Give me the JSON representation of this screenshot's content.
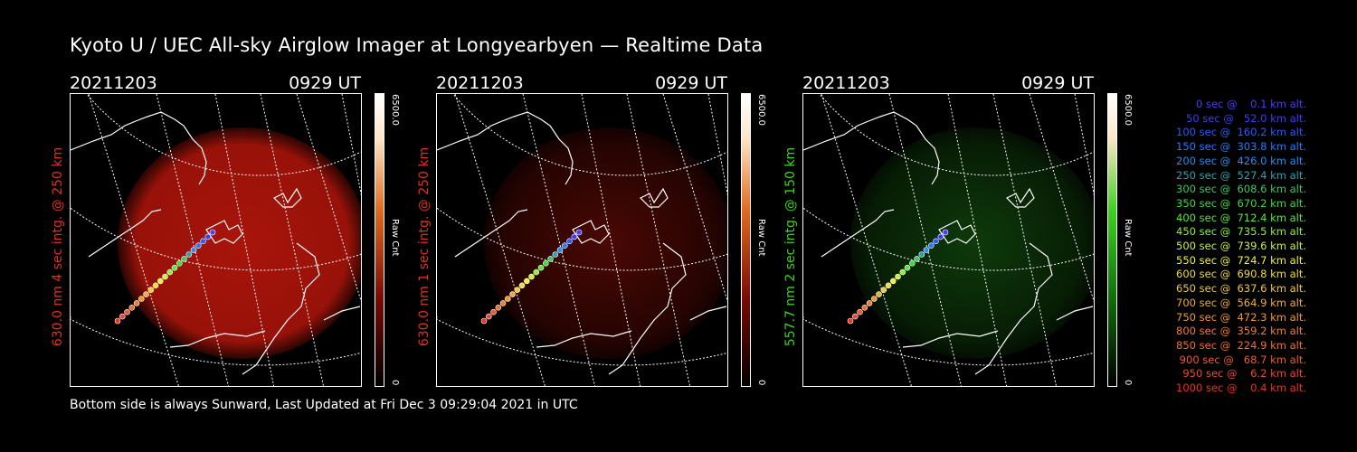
{
  "title": "Kyoto U / UEC All-sky Airglow Imager at Longyearbyen — Realtime Data",
  "panels": [
    {
      "date": "20211203",
      "time": "0929 UT",
      "ylabel": "630.0 nm 4 sec intg. @ 250 km",
      "color": "#e0321e",
      "glow": "#a8140a",
      "glow_level": 0.9,
      "cbar_max": "6500.0",
      "cbar_unit": "Raw Cnt",
      "cbar_zero": "0"
    },
    {
      "date": "20211203",
      "time": "0929 UT",
      "ylabel": "630.0 nm 1 sec intg. @ 250 km",
      "color": "#e0321e",
      "glow": "#4a0804",
      "glow_level": 0.5,
      "cbar_max": "6500.0",
      "cbar_unit": "Raw Cnt",
      "cbar_zero": "0"
    },
    {
      "date": "20211203",
      "time": "0929 UT",
      "ylabel": "557.7 nm 2 sec intg. @ 150 km",
      "color": "#3cd21e",
      "glow": "#0e3a0a",
      "glow_level": 0.5,
      "cbar_max": "6500.0",
      "cbar_unit": "Raw Cnt",
      "cbar_zero": "0"
    }
  ],
  "footer": "Bottom side is always Sunward, Last Updated at Fri Dec  3 09:29:04 2021 in UTC",
  "trajectory_legend": [
    {
      "label": "   0 sec @    0.1 km alt.",
      "color": "#4a3cff"
    },
    {
      "label": "  50 sec @   52.0 km alt.",
      "color": "#3c3cff"
    },
    {
      "label": " 100 sec @  160.2 km alt.",
      "color": "#2a5aff"
    },
    {
      "label": " 150 sec @  303.8 km alt.",
      "color": "#2a78ff"
    },
    {
      "label": " 200 sec @  426.0 km alt.",
      "color": "#2a8cf0"
    },
    {
      "label": " 250 sec @  527.4 km alt.",
      "color": "#32a0aa"
    },
    {
      "label": " 300 sec @  608.6 km alt.",
      "color": "#3cc864"
    },
    {
      "label": " 350 sec @  670.2 km alt.",
      "color": "#3cdc3c"
    },
    {
      "label": " 400 sec @  712.4 km alt.",
      "color": "#5ae63c"
    },
    {
      "label": " 450 sec @  735.5 km alt.",
      "color": "#8cf03c"
    },
    {
      "label": " 500 sec @  739.6 km alt.",
      "color": "#c8f03c"
    },
    {
      "label": " 550 sec @  724.7 km alt.",
      "color": "#f0f03c"
    },
    {
      "label": " 600 sec @  690.8 km alt.",
      "color": "#f0dc3c"
    },
    {
      "label": " 650 sec @  637.6 km alt.",
      "color": "#f0c83c"
    },
    {
      "label": " 700 sec @  564.9 km alt.",
      "color": "#f0aa3c"
    },
    {
      "label": " 750 sec @  472.3 km alt.",
      "color": "#f09632"
    },
    {
      "label": " 800 sec @  359.2 km alt.",
      "color": "#f07d32"
    },
    {
      "label": " 850 sec @  224.9 km alt.",
      "color": "#f06e32"
    },
    {
      "label": " 900 sec @   68.7 km alt.",
      "color": "#f05a32"
    },
    {
      "label": " 950 sec @    6.2 km alt.",
      "color": "#f04632"
    },
    {
      "label": "1000 sec @    0.4 km alt.",
      "color": "#f0321e"
    }
  ]
}
